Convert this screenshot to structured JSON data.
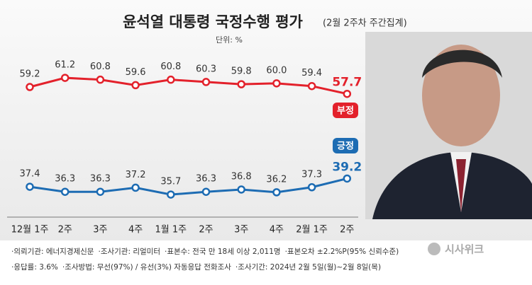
{
  "chart_data": {
    "type": "line",
    "title": "윤석열 대통령 국정수행 평가",
    "subtitle": "(2월 2주차 주간집계)",
    "unit": "단위: %",
    "categories": [
      "12월 1주",
      "2주",
      "3주",
      "4주",
      "1월 1주",
      "2주",
      "3주",
      "4주",
      "2월 1주",
      "2주"
    ],
    "series": [
      {
        "name": "부정",
        "color": "#e3212b",
        "values": [
          59.2,
          61.2,
          60.8,
          59.6,
          60.8,
          60.3,
          59.8,
          60.0,
          59.4,
          57.7
        ],
        "value_labels": [
          "59.2",
          "61.2",
          "60.8",
          "59.6",
          "60.8",
          "60.3",
          "59.8",
          "60.0",
          "59.4",
          "57.7"
        ]
      },
      {
        "name": "긍정",
        "color": "#1d6cb3",
        "values": [
          37.4,
          36.3,
          36.3,
          37.2,
          35.7,
          36.3,
          36.8,
          36.2,
          37.3,
          39.2
        ],
        "value_labels": [
          "37.4",
          "36.3",
          "36.3",
          "37.2",
          "35.7",
          "36.3",
          "36.8",
          "36.2",
          "37.3",
          "39.2"
        ]
      }
    ],
    "ylim": [
      30,
      66
    ],
    "notes": [
      [
        "·의뢰기관: 에너지경제신문",
        "·조사기관: 리얼미터",
        "·표본수: 전국 만 18세 이상 2,011명",
        "·표본오차 ±2.2%P(95% 신뢰수준)"
      ],
      [
        "·응답률: 3.6%",
        "·조사방법: 무선(97%) / 유선(3%) 자동응답 전화조사",
        "·조사기간: 2024년 2월 5일(월)~2월 8일(목)"
      ]
    ],
    "source": "시사위크"
  }
}
